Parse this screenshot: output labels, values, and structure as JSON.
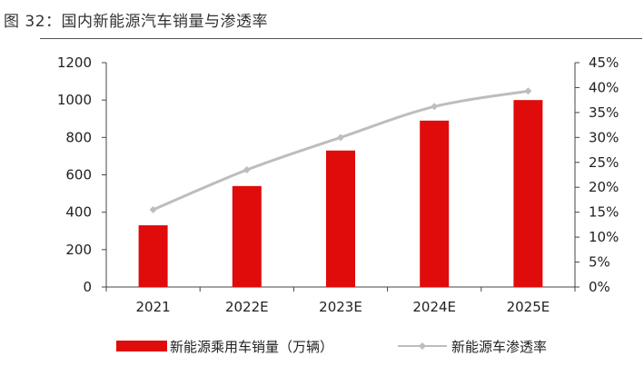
{
  "figure": {
    "title": "图 32：国内新能源汽车销量与渗透率"
  },
  "colors": {
    "bar": "#e00b0b",
    "line": "#bdbdbd",
    "axis": "#444444"
  },
  "chart_data": {
    "type": "bar",
    "categories": [
      "2021",
      "2022E",
      "2023E",
      "2024E",
      "2025E"
    ],
    "series": [
      {
        "name": "新能源乘用车销量（万辆）",
        "type": "bar",
        "axis": "left",
        "values": [
          330,
          540,
          730,
          890,
          1000
        ]
      },
      {
        "name": "新能源车渗透率",
        "type": "line",
        "axis": "right",
        "values": [
          0.155,
          0.235,
          0.3,
          0.362,
          0.393
        ]
      }
    ],
    "y_left": {
      "min": 0,
      "max": 1200,
      "step": 200,
      "ticks": [
        "0",
        "200",
        "400",
        "600",
        "800",
        "1000",
        "1200"
      ]
    },
    "y_right": {
      "min": 0,
      "max": 0.45,
      "step": 0.05,
      "ticks": [
        "0%",
        "5%",
        "10%",
        "15%",
        "20%",
        "25%",
        "30%",
        "35%",
        "40%",
        "45%"
      ]
    },
    "grid": false,
    "legend": "bottom"
  }
}
